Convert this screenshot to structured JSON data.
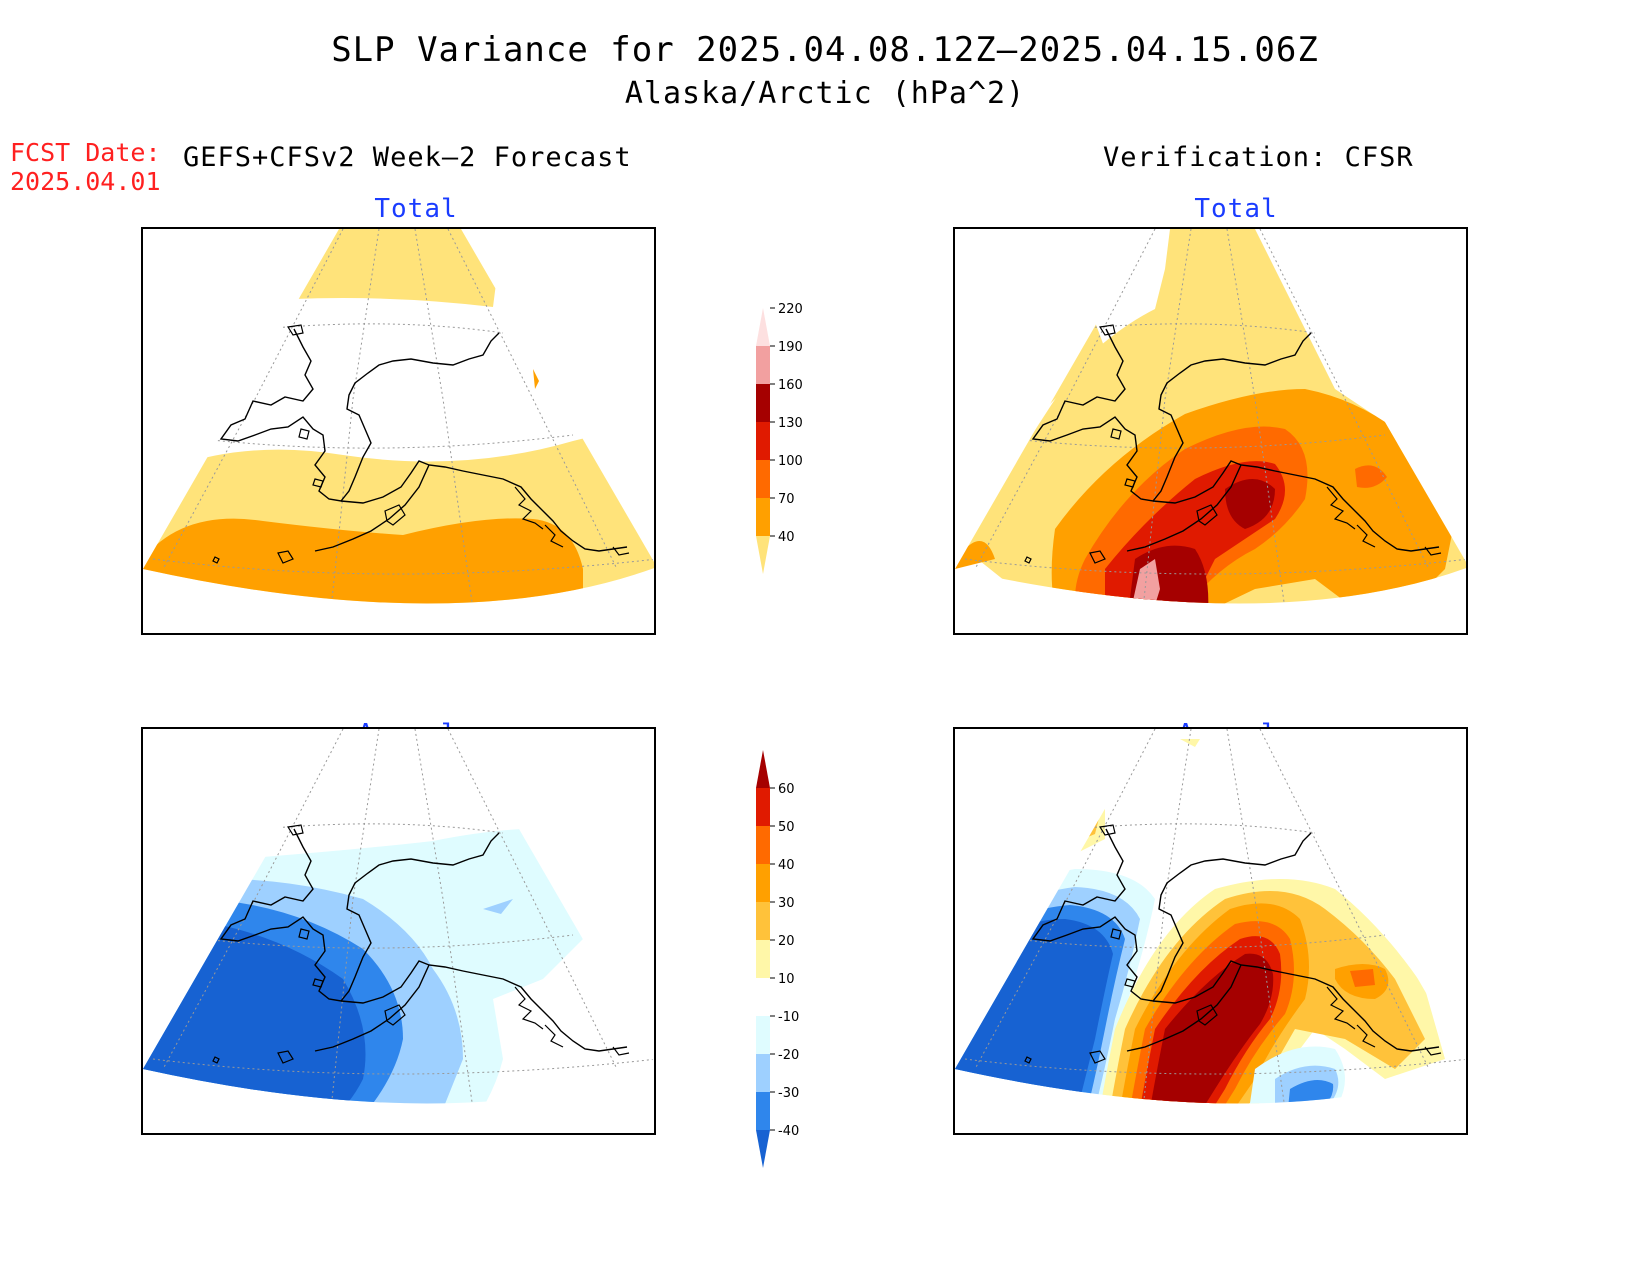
{
  "title": {
    "line1": "SLP Variance for 2025.04.08.12Z–2025.04.15.06Z",
    "line2": "Alaska/Arctic (hPa^2)"
  },
  "fcst_date": {
    "label": "FCST Date:",
    "value": "2025.04.01"
  },
  "columns": {
    "forecast": "GEFS+CFSv2 Week–2 Forecast",
    "verification": "Verification: CFSR"
  },
  "panels": {
    "forecast_total": "Total",
    "verification_total": "Total",
    "forecast_anomaly": "Anomaly",
    "verification_anomaly": "Anomaly"
  },
  "colors": {
    "lt_yellow": "#ffe37a",
    "orange": "#ffa000",
    "dk_orange": "#ff6a00",
    "red": "#e01a00",
    "dark_red": "#a50000",
    "pink": "#f2a0a0",
    "pale_cyan": "#dffcff",
    "lt_blue": "#9ed0ff",
    "mid_blue": "#2f86ec",
    "dk_blue": "#1762d2",
    "pale_yellow": "#fff7a8",
    "yellow_orange": "#ffc23a"
  },
  "colorbar_total": {
    "labels": [
      "40",
      "70",
      "100",
      "130",
      "160",
      "190",
      "220"
    ],
    "colors": [
      "#ffe37a",
      "#ffa000",
      "#ff6a00",
      "#e01a00",
      "#a50000",
      "#f2a0a0",
      "#fde0e0"
    ]
  },
  "colorbar_anomaly": {
    "labels": [
      "-40",
      "-30",
      "-20",
      "-10",
      "10",
      "20",
      "30",
      "40",
      "50",
      "60"
    ],
    "colors": [
      "#1762d2",
      "#2f86ec",
      "#9ed0ff",
      "#dffcff",
      "#ffffff",
      "#fff7a8",
      "#ffc23a",
      "#ffa000",
      "#ff6a00",
      "#e01a00",
      "#a50000"
    ]
  }
}
